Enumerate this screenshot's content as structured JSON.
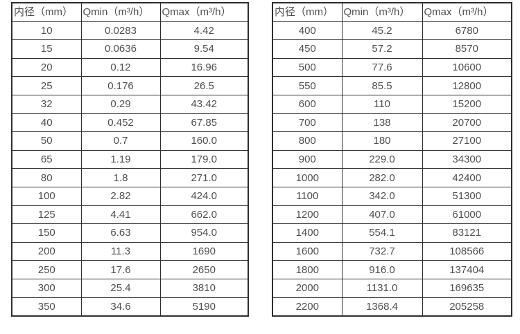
{
  "tables": {
    "header": [
      "内径（mm）",
      "Qmin（m³/h）",
      "Qmax（m³/h）"
    ],
    "left_rows": [
      [
        "10",
        "0.0283",
        "4.42"
      ],
      [
        "15",
        "0.0636",
        "9.54"
      ],
      [
        "20",
        "0.12",
        "16.96"
      ],
      [
        "25",
        "0.176",
        "26.5"
      ],
      [
        "32",
        "0.29",
        "43.42"
      ],
      [
        "40",
        "0.452",
        "67.85"
      ],
      [
        "50",
        "0.7",
        "160.0"
      ],
      [
        "65",
        "1.19",
        "179.0"
      ],
      [
        "80",
        "1.8",
        "271.0"
      ],
      [
        "100",
        "2.82",
        "424.0"
      ],
      [
        "125",
        "4.41",
        "662.0"
      ],
      [
        "150",
        "6.63",
        "954.0"
      ],
      [
        "200",
        "11.3",
        "1690"
      ],
      [
        "250",
        "17.6",
        "2650"
      ],
      [
        "300",
        "25.4",
        "3810"
      ],
      [
        "350",
        "34.6",
        "5190"
      ]
    ],
    "right_rows": [
      [
        "400",
        "45.2",
        "6780"
      ],
      [
        "450",
        "57.2",
        "8570"
      ],
      [
        "500",
        "77.6",
        "10600"
      ],
      [
        "550",
        "85.5",
        "12800"
      ],
      [
        "600",
        "110",
        "15200"
      ],
      [
        "700",
        "138",
        "20700"
      ],
      [
        "800",
        "180",
        "27100"
      ],
      [
        "900",
        "229.0",
        "34300"
      ],
      [
        "1000",
        "282.0",
        "42400"
      ],
      [
        "1100",
        "342.0",
        "51300"
      ],
      [
        "1200",
        "407.0",
        "61000"
      ],
      [
        "1400",
        "554.1",
        "83121"
      ],
      [
        "1600",
        "732.7",
        "108566"
      ],
      [
        "1800",
        "916.0",
        "137404"
      ],
      [
        "2000",
        "1131.0",
        "169635"
      ],
      [
        "2200",
        "1368.4",
        "205258"
      ]
    ],
    "colors": {
      "border": "#2e2e2e",
      "text": "#4f4f4f",
      "background": "#ffffff"
    }
  }
}
